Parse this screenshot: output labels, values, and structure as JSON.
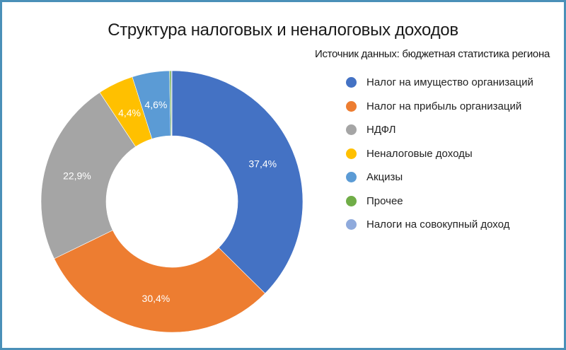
{
  "header": {
    "title": "Структура налоговых и неналоговых доходов",
    "subtitle": "Источник данных: бюджетная статистика региона"
  },
  "frame": {
    "border_color": "#4a90b8"
  },
  "legend": {
    "items": [
      {
        "label": "Налог на имущество организаций",
        "color": "#4472c4"
      },
      {
        "label": "Налог на прибыль организаций",
        "color": "#ed7d31"
      },
      {
        "label": "НДФЛ",
        "color": "#a5a5a5"
      },
      {
        "label": "Неналоговые доходы",
        "color": "#ffc000"
      },
      {
        "label": "Акцизы",
        "color": "#5b9bd5"
      },
      {
        "label": "Прочее",
        "color": "#70ad47"
      },
      {
        "label": "Налоги на совокупный доход",
        "color": "#8faadc"
      }
    ]
  },
  "chart_data": {
    "type": "pie",
    "subtype": "donut",
    "title": "Структура налоговых и неналоговых доходов",
    "subtitle": "Источник данных: бюджетная статистика региона",
    "categories": [
      "Налог на имущество организаций",
      "Налог на прибыль организаций",
      "НДФЛ",
      "Неналоговые доходы",
      "Акцизы",
      "Прочее",
      "Налоги на совокупный доход"
    ],
    "values": [
      37.4,
      30.4,
      22.9,
      4.4,
      4.6,
      0.2,
      0.1
    ],
    "data_labels": [
      "37,4%",
      "30,4%",
      "22,9%",
      "4,4%",
      "4,6%",
      "",
      ""
    ],
    "colors": [
      "#4472c4",
      "#ed7d31",
      "#a5a5a5",
      "#ffc000",
      "#5b9bd5",
      "#70ad47",
      "#8faadc"
    ],
    "unit": "%",
    "start_angle": "12 o'clock, clockwise",
    "legend_position": "right"
  }
}
